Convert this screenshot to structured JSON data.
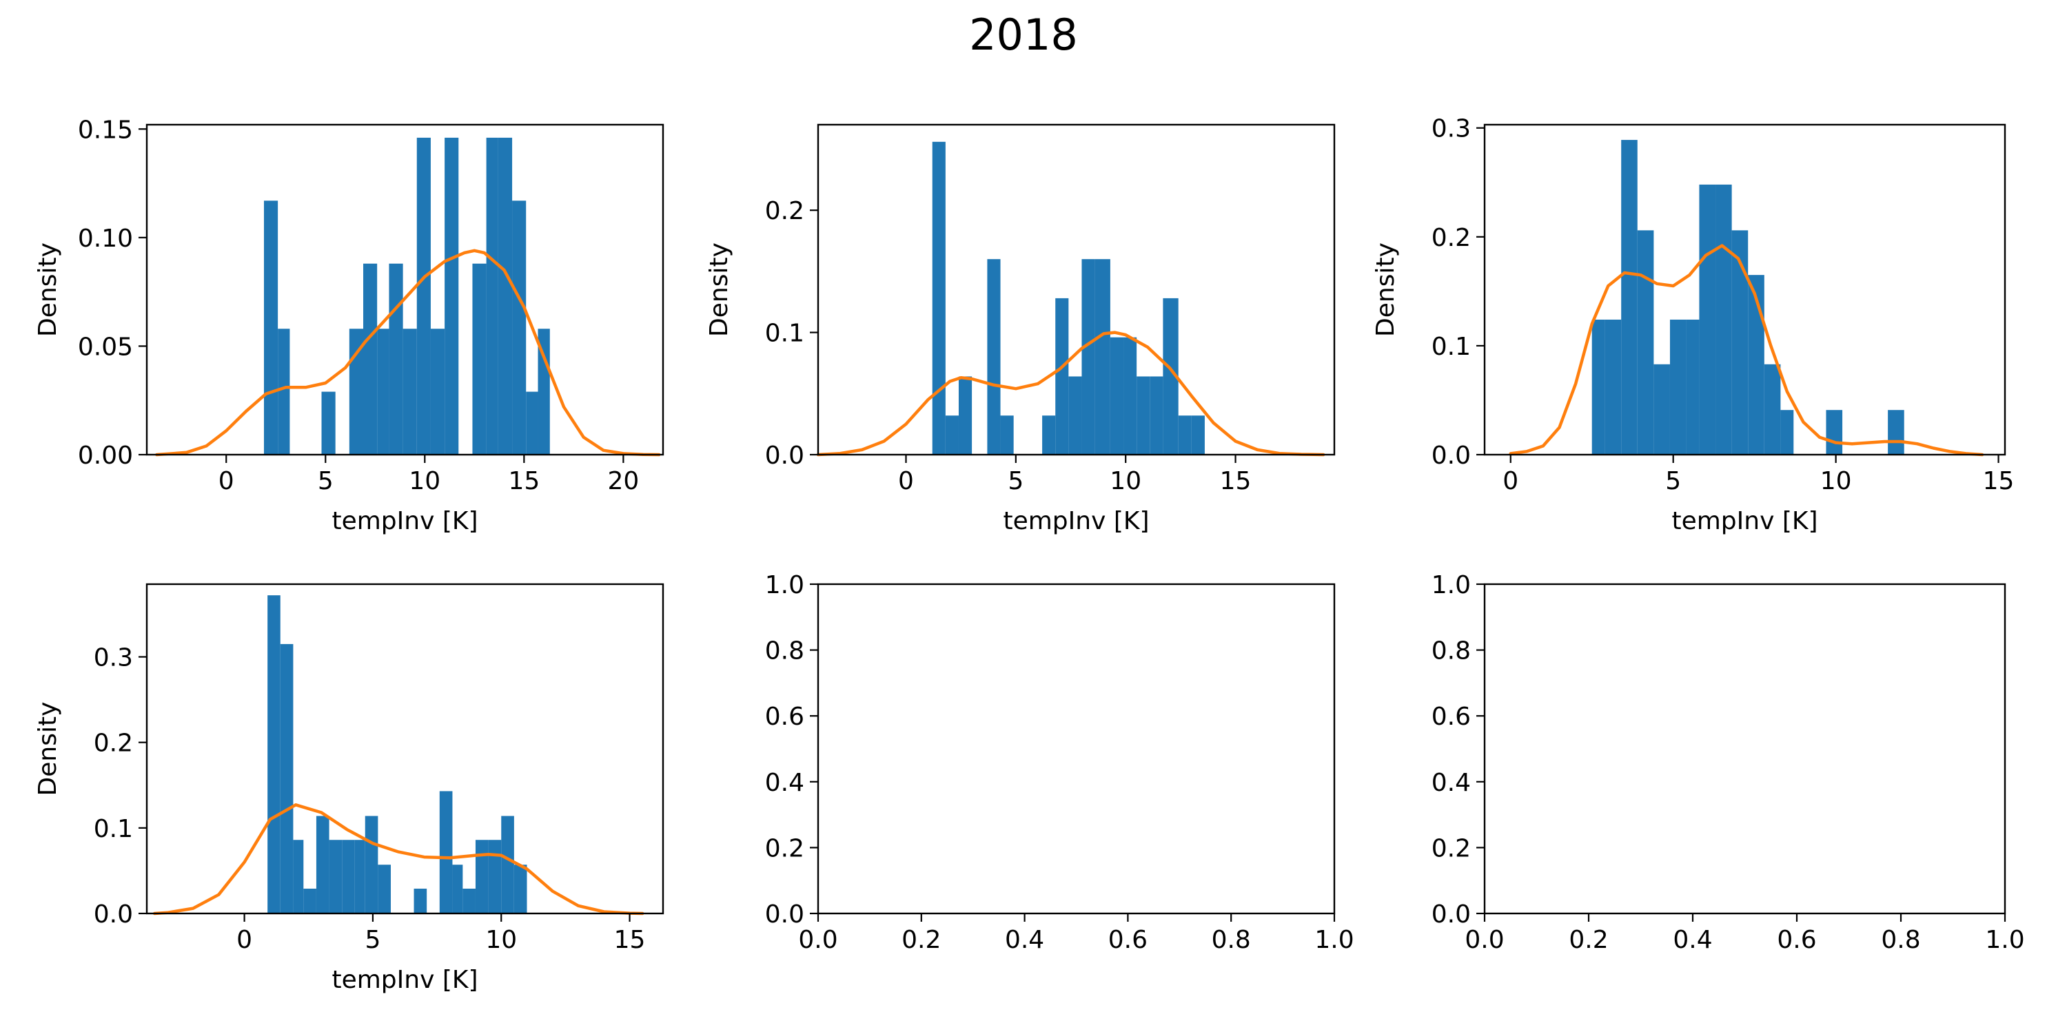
{
  "figure": {
    "title": "2018"
  },
  "colors": {
    "hist": "#1f77b4",
    "kde": "#ff7f0e",
    "axes": "#000000"
  },
  "chart_data": [
    {
      "type": "bar",
      "title": "",
      "xlabel": "tempInv [K]",
      "ylabel": "Density",
      "xlim": [
        -4,
        22
      ],
      "ylim": [
        0,
        0.152
      ],
      "xticks": [
        0,
        5,
        10,
        15,
        20
      ],
      "yticks": [
        0.0,
        0.05,
        0.1,
        0.15
      ],
      "ytick_decimals": 2,
      "bins": [
        {
          "x0": 1.9,
          "x1": 2.6,
          "y": 0.117
        },
        {
          "x0": 2.6,
          "x1": 3.2,
          "y": 0.058
        },
        {
          "x0": 4.8,
          "x1": 5.5,
          "y": 0.029
        },
        {
          "x0": 6.2,
          "x1": 6.9,
          "y": 0.058
        },
        {
          "x0": 6.9,
          "x1": 7.6,
          "y": 0.088
        },
        {
          "x0": 7.6,
          "x1": 8.2,
          "y": 0.058
        },
        {
          "x0": 8.2,
          "x1": 8.9,
          "y": 0.088
        },
        {
          "x0": 8.9,
          "x1": 9.6,
          "y": 0.058
        },
        {
          "x0": 9.6,
          "x1": 10.3,
          "y": 0.146
        },
        {
          "x0": 10.3,
          "x1": 11.0,
          "y": 0.058
        },
        {
          "x0": 11.0,
          "x1": 11.7,
          "y": 0.146
        },
        {
          "x0": 12.4,
          "x1": 13.1,
          "y": 0.088
        },
        {
          "x0": 13.1,
          "x1": 13.7,
          "y": 0.146
        },
        {
          "x0": 13.7,
          "x1": 14.4,
          "y": 0.146
        },
        {
          "x0": 14.4,
          "x1": 15.1,
          "y": 0.117
        },
        {
          "x0": 15.1,
          "x1": 15.7,
          "y": 0.029
        },
        {
          "x0": 15.7,
          "x1": 16.3,
          "y": 0.058
        }
      ],
      "kde": {
        "x": [
          -3.5,
          -2,
          -1,
          0,
          1,
          2,
          3,
          4,
          5,
          6,
          7,
          8,
          9,
          10,
          11,
          12,
          12.5,
          13,
          14,
          15,
          16,
          17,
          18,
          19,
          20,
          21,
          21.8
        ],
        "y": [
          0,
          0.001,
          0.004,
          0.011,
          0.02,
          0.028,
          0.031,
          0.031,
          0.033,
          0.04,
          0.052,
          0.062,
          0.072,
          0.082,
          0.089,
          0.093,
          0.094,
          0.093,
          0.085,
          0.068,
          0.045,
          0.022,
          0.008,
          0.002,
          0.0005,
          0.0001,
          0
        ]
      }
    },
    {
      "type": "bar",
      "title": "",
      "xlabel": "tempInv [K]",
      "ylabel": "Density",
      "xlim": [
        -4,
        19.5
      ],
      "ylim": [
        0,
        0.27
      ],
      "xticks": [
        0,
        5,
        10,
        15,
        20
      ],
      "yticks": [
        0.0,
        0.1,
        0.2
      ],
      "ytick_decimals": 1,
      "bins": [
        {
          "x0": 1.2,
          "x1": 1.8,
          "y": 0.256
        },
        {
          "x0": 1.8,
          "x1": 2.4,
          "y": 0.032
        },
        {
          "x0": 2.4,
          "x1": 3.0,
          "y": 0.064
        },
        {
          "x0": 3.7,
          "x1": 4.3,
          "y": 0.16
        },
        {
          "x0": 4.3,
          "x1": 4.9,
          "y": 0.032
        },
        {
          "x0": 6.2,
          "x1": 6.8,
          "y": 0.032
        },
        {
          "x0": 6.8,
          "x1": 7.4,
          "y": 0.128
        },
        {
          "x0": 7.4,
          "x1": 8.0,
          "y": 0.064
        },
        {
          "x0": 8.0,
          "x1": 8.6,
          "y": 0.16
        },
        {
          "x0": 8.6,
          "x1": 9.3,
          "y": 0.16
        },
        {
          "x0": 9.3,
          "x1": 9.9,
          "y": 0.096
        },
        {
          "x0": 9.9,
          "x1": 10.5,
          "y": 0.096
        },
        {
          "x0": 10.5,
          "x1": 11.1,
          "y": 0.064
        },
        {
          "x0": 11.1,
          "x1": 11.7,
          "y": 0.064
        },
        {
          "x0": 11.7,
          "x1": 12.4,
          "y": 0.128
        },
        {
          "x0": 12.4,
          "x1": 13.0,
          "y": 0.032
        },
        {
          "x0": 13.0,
          "x1": 13.6,
          "y": 0.032
        }
      ],
      "kde": {
        "x": [
          -4,
          -3,
          -2,
          -1,
          0,
          1,
          2,
          2.5,
          3,
          4,
          5,
          6,
          7,
          8,
          9,
          9.5,
          10,
          11,
          12,
          13,
          14,
          15,
          16,
          17,
          18,
          19
        ],
        "y": [
          0,
          0.001,
          0.004,
          0.011,
          0.025,
          0.045,
          0.06,
          0.063,
          0.062,
          0.057,
          0.054,
          0.058,
          0.07,
          0.087,
          0.099,
          0.1,
          0.098,
          0.088,
          0.071,
          0.048,
          0.026,
          0.011,
          0.004,
          0.001,
          0.0003,
          0
        ]
      }
    },
    {
      "type": "bar",
      "title": "",
      "xlabel": "tempInv [K]",
      "ylabel": "Density",
      "xlim": [
        -0.8,
        15.2
      ],
      "ylim": [
        0,
        0.303
      ],
      "xticks": [
        0,
        5,
        10,
        15
      ],
      "yticks": [
        0.0,
        0.1,
        0.2,
        0.3
      ],
      "ytick_decimals": 1,
      "bins": [
        {
          "x0": 2.5,
          "x1": 2.9,
          "y": 0.124
        },
        {
          "x0": 2.9,
          "x1": 3.4,
          "y": 0.124
        },
        {
          "x0": 3.4,
          "x1": 3.9,
          "y": 0.289
        },
        {
          "x0": 3.9,
          "x1": 4.4,
          "y": 0.206
        },
        {
          "x0": 4.4,
          "x1": 4.9,
          "y": 0.083
        },
        {
          "x0": 4.9,
          "x1": 5.4,
          "y": 0.124
        },
        {
          "x0": 5.4,
          "x1": 5.8,
          "y": 0.124
        },
        {
          "x0": 5.8,
          "x1": 6.3,
          "y": 0.248
        },
        {
          "x0": 6.3,
          "x1": 6.8,
          "y": 0.248
        },
        {
          "x0": 6.8,
          "x1": 7.3,
          "y": 0.206
        },
        {
          "x0": 7.3,
          "x1": 7.8,
          "y": 0.165
        },
        {
          "x0": 7.8,
          "x1": 8.3,
          "y": 0.083
        },
        {
          "x0": 8.3,
          "x1": 8.7,
          "y": 0.041
        },
        {
          "x0": 9.7,
          "x1": 10.2,
          "y": 0.041
        },
        {
          "x0": 11.6,
          "x1": 12.1,
          "y": 0.041
        }
      ],
      "kde": {
        "x": [
          0,
          0.5,
          1,
          1.5,
          2,
          2.5,
          3,
          3.5,
          4,
          4.5,
          5,
          5.5,
          6,
          6.5,
          7,
          7.5,
          8,
          8.5,
          9,
          9.5,
          10,
          10.5,
          11,
          11.5,
          12,
          12.5,
          13,
          13.5,
          14,
          14.5
        ],
        "y": [
          0.001,
          0.003,
          0.008,
          0.025,
          0.065,
          0.12,
          0.155,
          0.167,
          0.165,
          0.157,
          0.155,
          0.165,
          0.183,
          0.192,
          0.18,
          0.148,
          0.1,
          0.058,
          0.03,
          0.016,
          0.011,
          0.01,
          0.011,
          0.012,
          0.012,
          0.01,
          0.006,
          0.003,
          0.001,
          0
        ]
      }
    },
    {
      "type": "bar",
      "title": "",
      "xlabel": "tempInv [K]",
      "ylabel": "Density",
      "xlim": [
        -3.8,
        16.3
      ],
      "ylim": [
        0,
        0.385
      ],
      "xticks": [
        0,
        5,
        10,
        15
      ],
      "yticks": [
        0.0,
        0.1,
        0.2,
        0.3
      ],
      "ytick_decimals": 1,
      "bins": [
        {
          "x0": 0.9,
          "x1": 1.4,
          "y": 0.372
        },
        {
          "x0": 1.4,
          "x1": 1.9,
          "y": 0.315
        },
        {
          "x0": 1.9,
          "x1": 2.3,
          "y": 0.086
        },
        {
          "x0": 2.3,
          "x1": 2.8,
          "y": 0.029
        },
        {
          "x0": 2.8,
          "x1": 3.3,
          "y": 0.114
        },
        {
          "x0": 3.3,
          "x1": 3.8,
          "y": 0.086
        },
        {
          "x0": 3.8,
          "x1": 4.3,
          "y": 0.086
        },
        {
          "x0": 4.3,
          "x1": 4.7,
          "y": 0.086
        },
        {
          "x0": 4.7,
          "x1": 5.2,
          "y": 0.114
        },
        {
          "x0": 5.2,
          "x1": 5.7,
          "y": 0.057
        },
        {
          "x0": 6.6,
          "x1": 7.1,
          "y": 0.029
        },
        {
          "x0": 7.6,
          "x1": 8.1,
          "y": 0.143
        },
        {
          "x0": 8.1,
          "x1": 8.5,
          "y": 0.057
        },
        {
          "x0": 8.5,
          "x1": 9.0,
          "y": 0.029
        },
        {
          "x0": 9.0,
          "x1": 9.5,
          "y": 0.086
        },
        {
          "x0": 9.5,
          "x1": 10.0,
          "y": 0.086
        },
        {
          "x0": 10.0,
          "x1": 10.5,
          "y": 0.114
        },
        {
          "x0": 10.5,
          "x1": 11.0,
          "y": 0.057
        }
      ],
      "kde": {
        "x": [
          -3.5,
          -3,
          -2,
          -1,
          0,
          1,
          2,
          3,
          4,
          5,
          6,
          7,
          8,
          9,
          9.5,
          10,
          11,
          12,
          13,
          14,
          15,
          15.5
        ],
        "y": [
          0,
          0.001,
          0.006,
          0.022,
          0.06,
          0.11,
          0.127,
          0.118,
          0.098,
          0.082,
          0.072,
          0.066,
          0.065,
          0.068,
          0.069,
          0.068,
          0.052,
          0.026,
          0.009,
          0.002,
          0.0003,
          0
        ]
      }
    },
    {
      "type": "table",
      "title": "",
      "xlabel": "",
      "ylabel": "",
      "xlim": [
        0,
        1
      ],
      "ylim": [
        0,
        1
      ],
      "xticks": [
        0.0,
        0.2,
        0.4,
        0.6,
        0.8,
        1.0
      ],
      "yticks": [
        0.0,
        0.2,
        0.4,
        0.6,
        0.8,
        1.0
      ],
      "ytick_decimals": 1,
      "bins": [],
      "kde": null
    },
    {
      "type": "table",
      "title": "",
      "xlabel": "",
      "ylabel": "",
      "xlim": [
        0,
        1
      ],
      "ylim": [
        0,
        1
      ],
      "xticks": [
        0.0,
        0.2,
        0.4,
        0.6,
        0.8,
        1.0
      ],
      "yticks": [
        0.0,
        0.2,
        0.4,
        0.6,
        0.8,
        1.0
      ],
      "ytick_decimals": 1,
      "bins": [],
      "kde": null
    }
  ]
}
